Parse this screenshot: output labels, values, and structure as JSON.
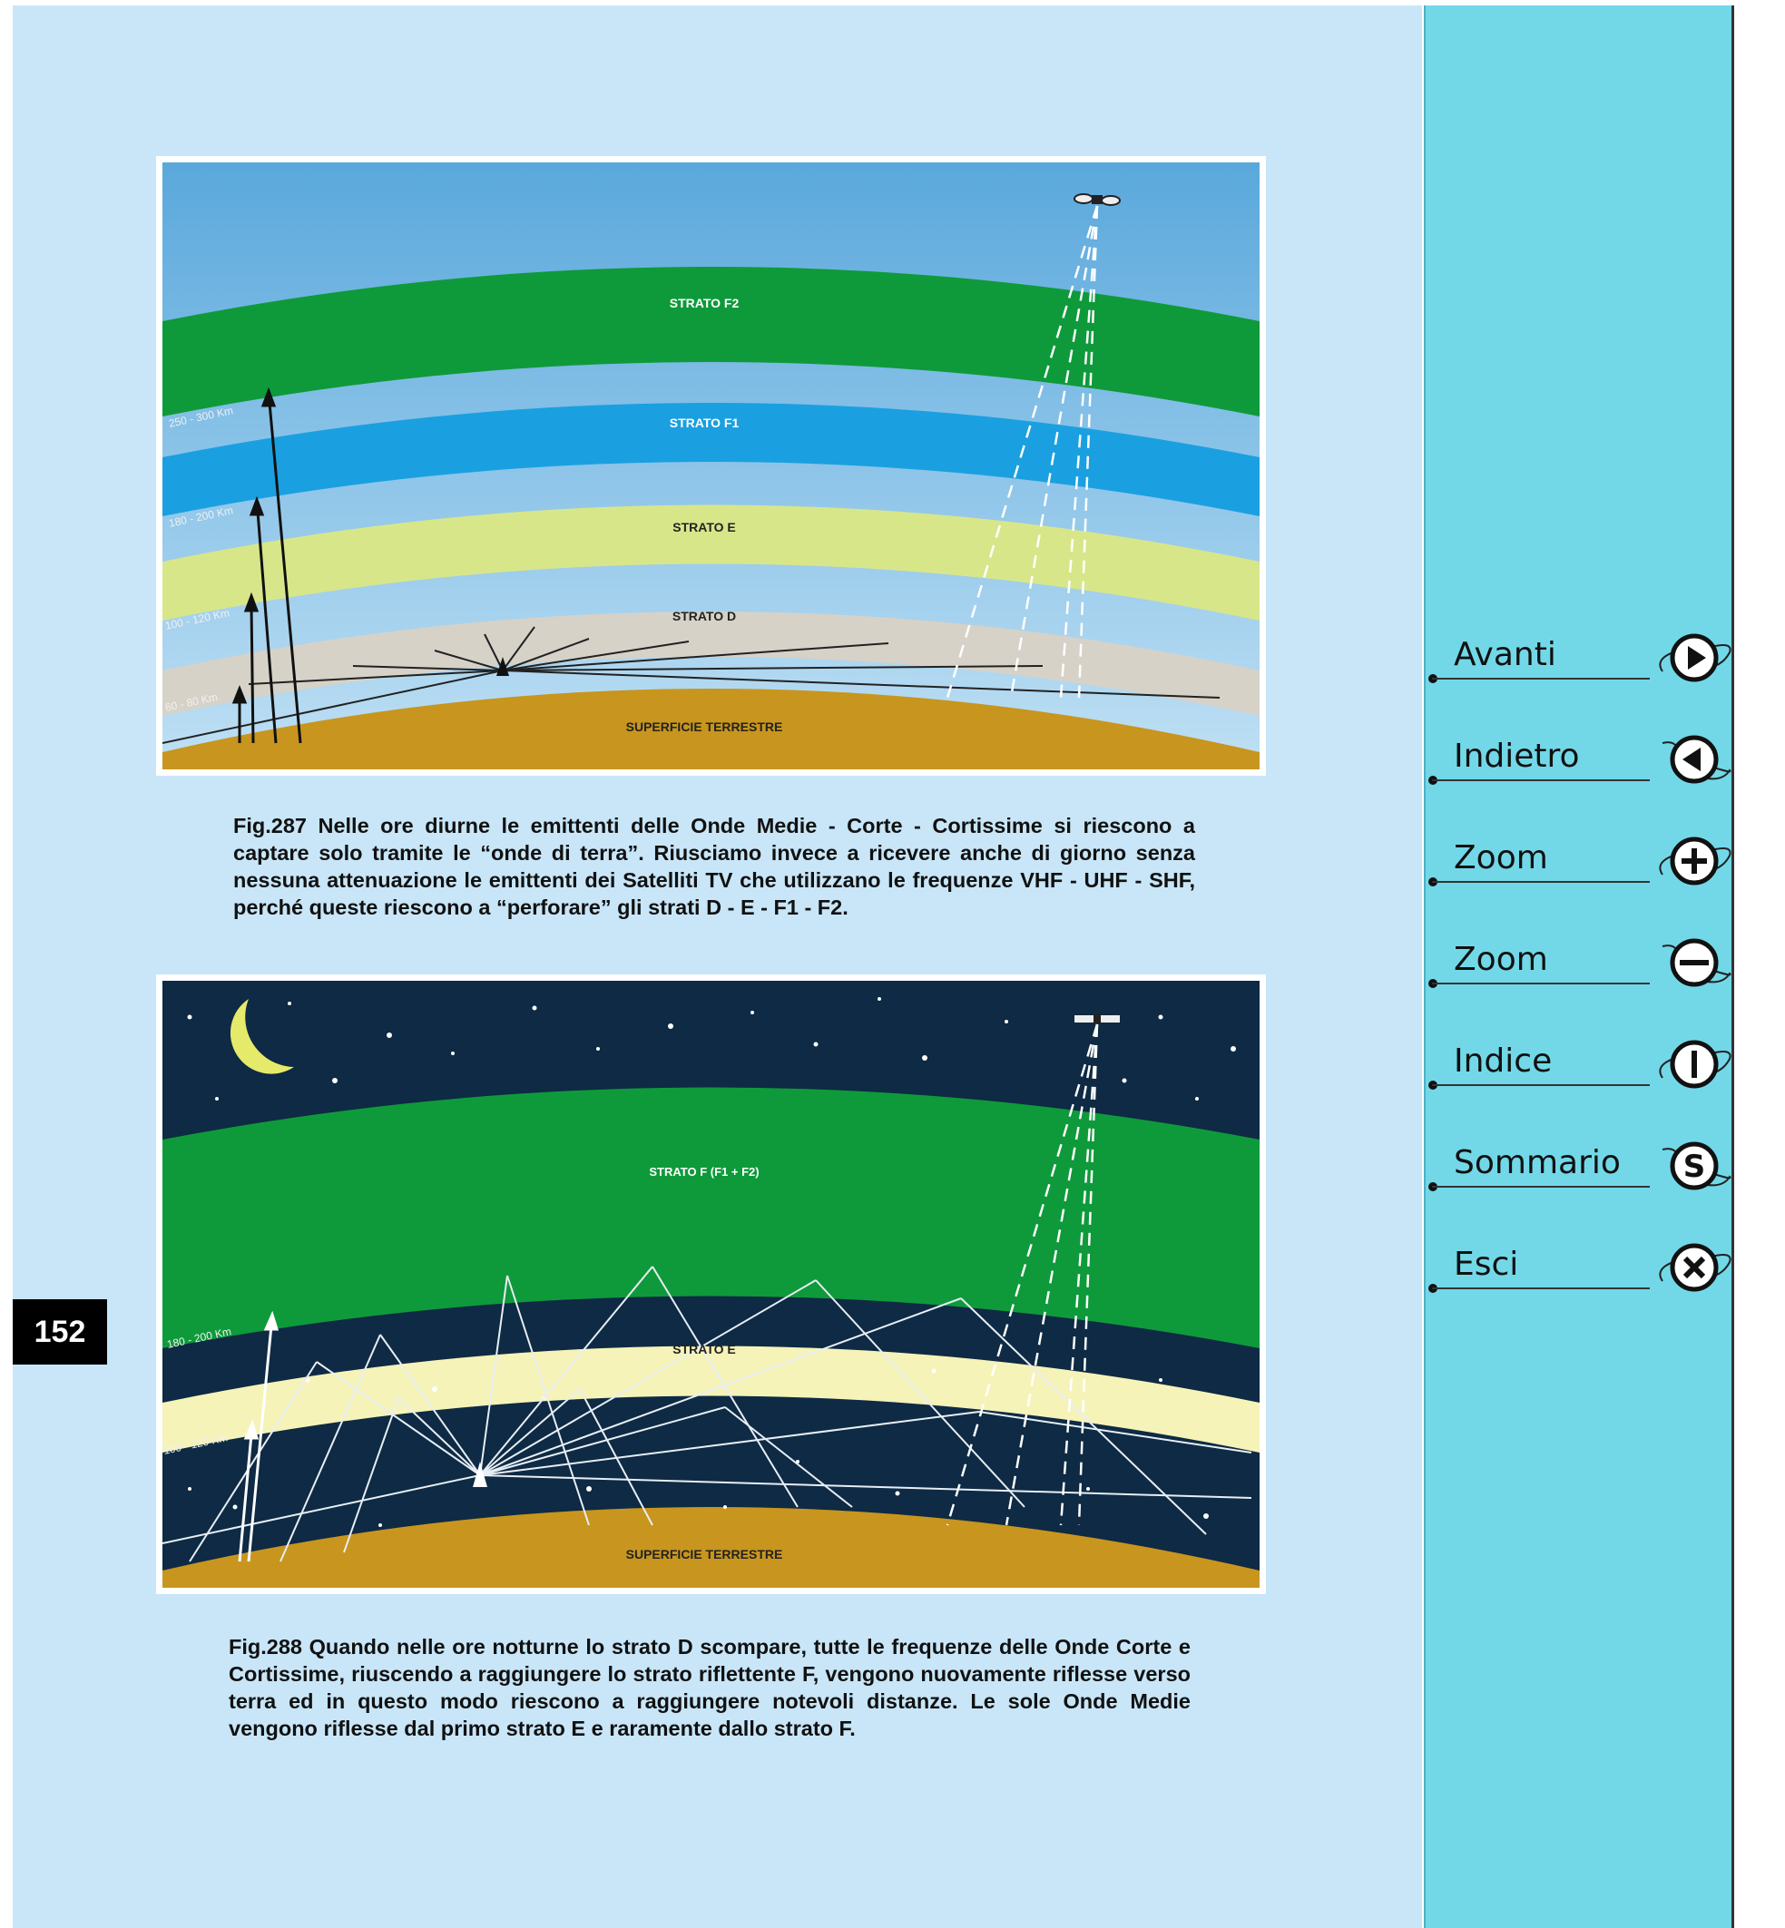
{
  "page_number": "152",
  "fig287": {
    "labels": {
      "f2": "STRATO F2",
      "f1": "STRATO F1",
      "e": "STRATO E",
      "d": "STRATO D",
      "ground": "SUPERFICIE TERRESTRE"
    },
    "altitudes": [
      "250 - 300 Km",
      "180 - 200 Km",
      "100 - 120 Km",
      "60 - 80 Km"
    ],
    "caption": "Fig.287 Nelle ore diurne le emittenti delle Onde Medie - Corte - Cortissime si riescono a captare solo tramite le “onde di terra”. Riusciamo invece a ricevere anche di giorno senza nessuna attenuazione le emittenti dei Satelliti TV che utilizzano le frequenze VHF - UHF - SHF, perché queste riescono a “perforare” gli strati D - E - F1 - F2."
  },
  "fig288": {
    "labels": {
      "f": "STRATO F (F1 + F2)",
      "e": "STRATO E",
      "ground": "SUPERFICIE TERRESTRE"
    },
    "altitudes": [
      "180 - 200 Km",
      "100 - 120 Km"
    ],
    "caption": "Fig.288 Quando nelle ore notturne lo strato D scompare, tutte le frequenze delle Onde Corte e Cortissime, riuscendo a raggiungere lo strato riflettente F, vengono nuovamente riflesse verso terra ed in questo modo riescono a raggiungere notevoli distanze. Le sole Onde Medie vengono riflesse dal primo strato E e raramente dallo strato F."
  },
  "nav": [
    {
      "label": "Avanti",
      "icon": "play-right-icon"
    },
    {
      "label": "Indietro",
      "icon": "play-left-icon"
    },
    {
      "label": "Zoom",
      "icon": "zoom-in-icon"
    },
    {
      "label": "Zoom",
      "icon": "zoom-out-icon"
    },
    {
      "label": "Indice",
      "icon": "index-icon"
    },
    {
      "label": "Sommario",
      "icon": "summary-icon"
    },
    {
      "label": "Esci",
      "icon": "exit-icon"
    }
  ],
  "colors": {
    "page_bg": "#c8e6f8",
    "sidebar_bg": "#72d8e8",
    "strato_f2": "#0e9a3a",
    "strato_f1": "#1aa0e0",
    "strato_e": "#d8e68a",
    "strato_d": "#d6d2c8",
    "ground": "#c8951e",
    "night_sky": "#0e2a44"
  }
}
